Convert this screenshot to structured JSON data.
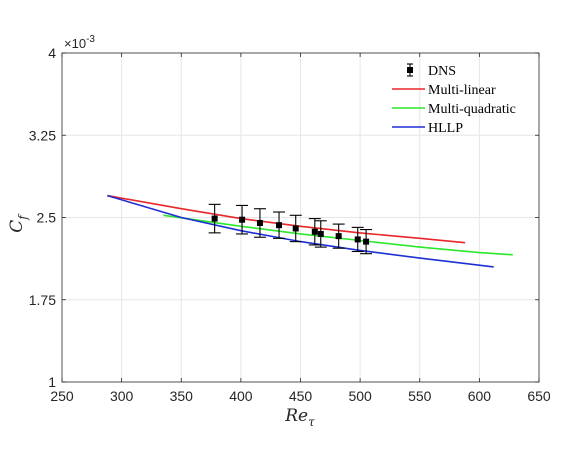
{
  "chart_data": {
    "type": "line",
    "xlabel": "Re",
    "xlabel_sub": "τ",
    "ylabel": "C",
    "ylabel_sub": "f",
    "y_exponent": "×10",
    "y_exponent_power": "-3",
    "xlim": [
      250,
      650
    ],
    "ylim": [
      1,
      4
    ],
    "x_ticks": [
      250,
      300,
      350,
      400,
      450,
      500,
      550,
      600,
      650
    ],
    "y_ticks": [
      1,
      1.75,
      2.5,
      3.25,
      4
    ],
    "x_tick_labels": [
      "250",
      "300",
      "350",
      "400",
      "450",
      "500",
      "550",
      "600",
      "650"
    ],
    "y_tick_labels": [
      "1",
      "1.75",
      "2.5",
      "3.25",
      "4"
    ],
    "grid": true,
    "legend_position": "top-right",
    "series": [
      {
        "name": "DNS",
        "kind": "errorbar",
        "color": "#000000",
        "x": [
          378,
          401,
          416,
          432,
          446,
          462,
          467,
          482,
          498,
          505
        ],
        "y": [
          2.49,
          2.48,
          2.45,
          2.43,
          2.4,
          2.37,
          2.35,
          2.33,
          2.3,
          2.28
        ],
        "err": [
          0.13,
          0.13,
          0.13,
          0.12,
          0.12,
          0.12,
          0.12,
          0.11,
          0.11,
          0.11
        ]
      },
      {
        "name": "Multi-linear",
        "kind": "line",
        "color": "#e8262b",
        "x": [
          288,
          350,
          400,
          450,
          500,
          550,
          588
        ],
        "y": [
          2.7,
          2.58,
          2.49,
          2.42,
          2.36,
          2.31,
          2.27
        ]
      },
      {
        "name": "Multi-quadratic",
        "kind": "line",
        "color": "#2be82b",
        "x": [
          335,
          400,
          450,
          500,
          550,
          600,
          628
        ],
        "y": [
          2.52,
          2.42,
          2.35,
          2.29,
          2.23,
          2.18,
          2.16
        ]
      },
      {
        "name": "HLLP",
        "kind": "line",
        "color": "#1f2fd6",
        "x": [
          288,
          350,
          400,
          450,
          500,
          550,
          612
        ],
        "y": [
          2.7,
          2.5,
          2.38,
          2.28,
          2.2,
          2.13,
          2.05
        ]
      }
    ]
  }
}
